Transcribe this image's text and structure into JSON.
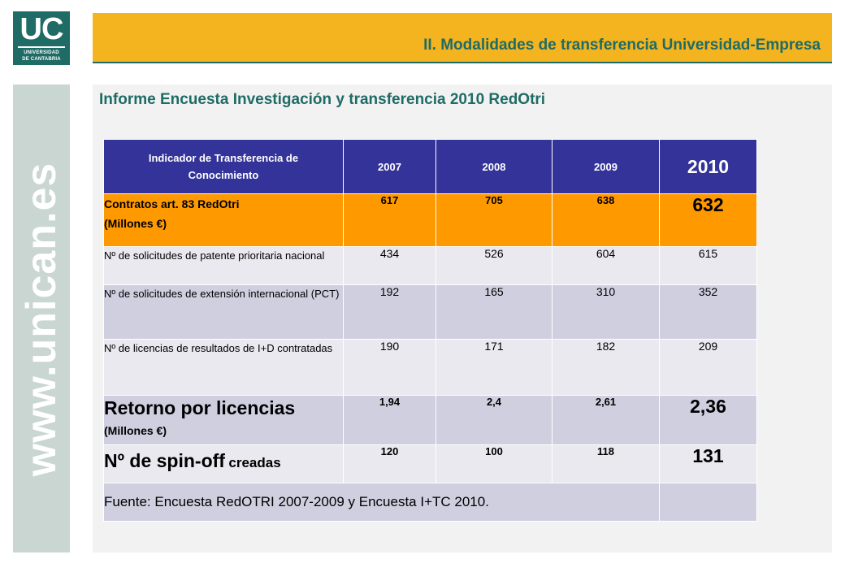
{
  "logo": {
    "mark": "UC",
    "line1": "UNIVERSIDAD",
    "line2": "DE CANTABRIA"
  },
  "header": {
    "title": "II. Modalidades de transferencia Universidad-Empresa"
  },
  "side": {
    "url": "www.unican.es"
  },
  "subtitle": "Informe Encuesta Investigación y transferencia 2010 RedOtri",
  "colors": {
    "teal": "#1f6b66",
    "gold": "#f3b41f",
    "header_blue": "#333399",
    "orange": "#ff9900",
    "row_light": "#e9e9ef",
    "row_dark": "#cfcfe0"
  },
  "table": {
    "headers": [
      "Indicador de Transferencia de Conocimiento",
      "2007",
      "2008",
      "2009",
      "2010"
    ],
    "rows": [
      {
        "label_line1": "Contratos art. 83 RedOtri",
        "label_line2": "(Millones €)",
        "values": [
          "617",
          "705",
          "638",
          "632"
        ]
      },
      {
        "label": "Nº de solicitudes de patente prioritaria nacional",
        "values": [
          "434",
          "526",
          "604",
          "615"
        ]
      },
      {
        "label": "Nº de solicitudes de extensión internacional (PCT)",
        "values": [
          "192",
          "165",
          "310",
          "352"
        ]
      },
      {
        "label": "Nº de licencias de resultados de I+D contratadas",
        "values": [
          "190",
          "171",
          "182",
          "209"
        ]
      },
      {
        "label_line1": "Retorno por licencias",
        "label_line2": "(Millones €)",
        "values": [
          "1,94",
          "2,4",
          "2,61",
          "2,36"
        ]
      },
      {
        "label_big": "Nº de spin-off",
        "label_small": "creadas",
        "values": [
          "120",
          "100",
          "118",
          "131"
        ]
      }
    ],
    "source": "Fuente: Encuesta RedOTRI 2007-2009 y Encuesta I+TC 2010."
  }
}
